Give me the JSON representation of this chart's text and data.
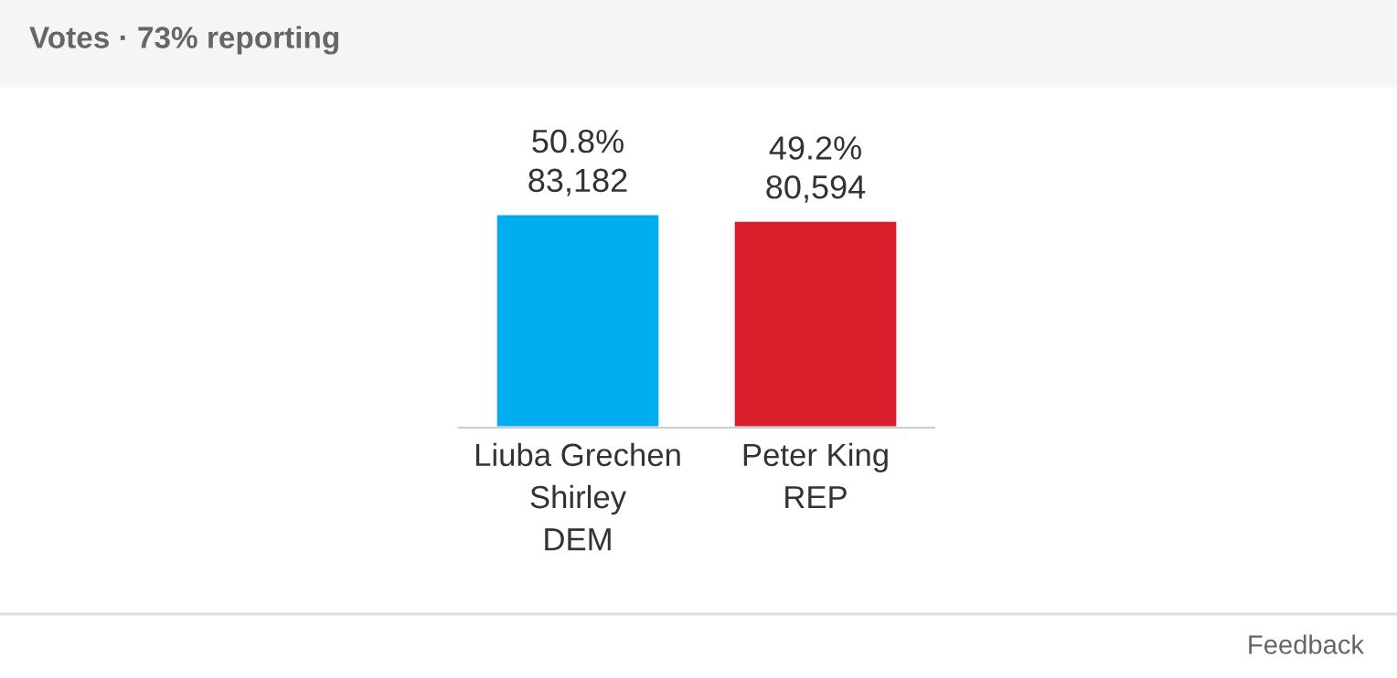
{
  "chart_data": {
    "type": "bar",
    "title": "Votes · 73% reporting",
    "categories": [
      "Liuba Grechen\nShirley\nDEM",
      "Peter King\nREP"
    ],
    "values": [
      50.8,
      49.2
    ],
    "colors": [
      "#00aeef",
      "#d81e2b"
    ],
    "value_labels": [
      "50.8%\n83,182",
      "49.2%\n80,594"
    ],
    "tick_labels": "x",
    "grid": false,
    "legend": false,
    "annotations": [
      "Feedback"
    ]
  }
}
